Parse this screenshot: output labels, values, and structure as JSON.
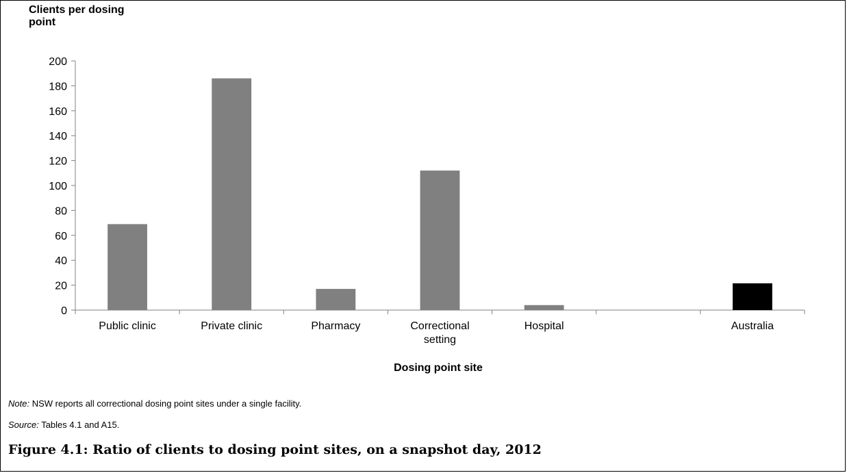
{
  "chart_data": {
    "type": "bar",
    "title": "",
    "ylabel": "Clients per dosing point",
    "xlabel": "Dosing point site",
    "ylim": [
      0,
      200
    ],
    "yticks": [
      0,
      20,
      40,
      60,
      80,
      100,
      120,
      140,
      160,
      180,
      200
    ],
    "categories": [
      "Public clinic",
      "Private clinic",
      "Pharmacy",
      "Correctional setting",
      "Hospital",
      "",
      "Australia"
    ],
    "category_labels": [
      [
        "Public clinic"
      ],
      [
        "Private clinic"
      ],
      [
        "Pharmacy"
      ],
      [
        "Correctional",
        "setting"
      ],
      [
        "Hospital"
      ],
      [
        ""
      ],
      [
        "Australia"
      ]
    ],
    "values": [
      69,
      186,
      17,
      112,
      4,
      null,
      21.5
    ],
    "colors": [
      "#808080",
      "#808080",
      "#808080",
      "#808080",
      "#808080",
      "#808080",
      "#000000"
    ],
    "grid": false,
    "legend": "none"
  },
  "note": {
    "label": "Note:",
    "text": " NSW reports all correctional dosing point sites under a single facility."
  },
  "source": {
    "label": "Source:",
    "text": " Tables 4.1 and A15."
  },
  "caption": "Figure 4.1: Ratio of clients to dosing point sites, on a snapshot day, 2012"
}
